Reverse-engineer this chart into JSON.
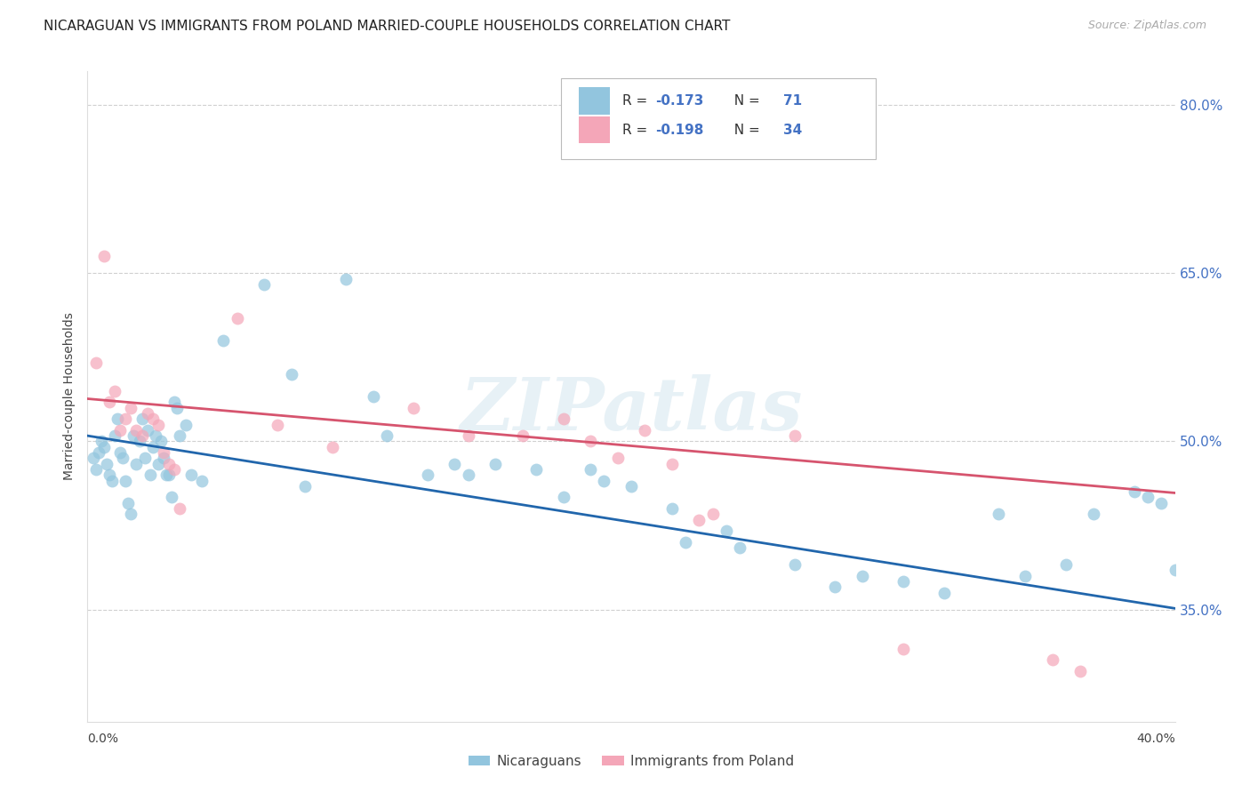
{
  "title": "NICARAGUAN VS IMMIGRANTS FROM POLAND MARRIED-COUPLE HOUSEHOLDS CORRELATION CHART",
  "source": "Source: ZipAtlas.com",
  "ylabel": "Married-couple Households",
  "blue_color": "#92c5de",
  "pink_color": "#f4a6b8",
  "blue_line_color": "#2166ac",
  "pink_line_color": "#d6546e",
  "blue_x": [
    0.2,
    0.3,
    0.4,
    0.5,
    0.6,
    0.7,
    0.8,
    0.9,
    1.0,
    1.1,
    1.2,
    1.3,
    1.4,
    1.5,
    1.6,
    1.7,
    1.8,
    1.9,
    2.0,
    2.1,
    2.2,
    2.3,
    2.4,
    2.5,
    2.6,
    2.7,
    2.8,
    2.9,
    3.0,
    3.1,
    3.2,
    3.3,
    3.4,
    3.6,
    3.8,
    4.2,
    5.0,
    6.5,
    7.5,
    8.0,
    9.5,
    10.5,
    11.0,
    12.5,
    13.5,
    14.0,
    15.0,
    16.5,
    17.5,
    18.5,
    19.0,
    20.0,
    21.5,
    22.0,
    23.5,
    24.0,
    26.0,
    27.5,
    28.5,
    30.0,
    31.5,
    33.5,
    34.5,
    36.0,
    37.0,
    38.5,
    39.0,
    39.5,
    40.0,
    40.5,
    41.0
  ],
  "blue_y": [
    48.5,
    47.5,
    49.0,
    50.0,
    49.5,
    48.0,
    47.0,
    46.5,
    50.5,
    52.0,
    49.0,
    48.5,
    46.5,
    44.5,
    43.5,
    50.5,
    48.0,
    50.0,
    52.0,
    48.5,
    51.0,
    47.0,
    49.5,
    50.5,
    48.0,
    50.0,
    48.5,
    47.0,
    47.0,
    45.0,
    53.5,
    53.0,
    50.5,
    51.5,
    47.0,
    46.5,
    59.0,
    64.0,
    56.0,
    46.0,
    64.5,
    54.0,
    50.5,
    47.0,
    48.0,
    47.0,
    48.0,
    47.5,
    45.0,
    47.5,
    46.5,
    46.0,
    44.0,
    41.0,
    42.0,
    40.5,
    39.0,
    37.0,
    38.0,
    37.5,
    36.5,
    43.5,
    38.0,
    39.0,
    43.5,
    45.5,
    45.0,
    44.5,
    38.5,
    38.5,
    37.5
  ],
  "pink_x": [
    0.3,
    0.6,
    0.8,
    1.0,
    1.2,
    1.4,
    1.6,
    1.8,
    2.0,
    2.2,
    2.4,
    2.6,
    2.8,
    3.0,
    3.2,
    3.4,
    5.5,
    7.0,
    9.0,
    12.0,
    14.0,
    16.0,
    17.5,
    18.5,
    19.5,
    20.5,
    21.5,
    22.5,
    23.0,
    26.0,
    30.0,
    35.5,
    36.5
  ],
  "pink_y": [
    57.0,
    66.5,
    53.5,
    54.5,
    51.0,
    52.0,
    53.0,
    51.0,
    50.5,
    52.5,
    52.0,
    51.5,
    49.0,
    48.0,
    47.5,
    44.0,
    61.0,
    51.5,
    49.5,
    53.0,
    50.5,
    50.5,
    52.0,
    50.0,
    48.5,
    51.0,
    48.0,
    43.0,
    43.5,
    50.5,
    31.5,
    30.5,
    29.5
  ],
  "xmin": 0.0,
  "xmax": 40.0,
  "ymin": 25.0,
  "ymax": 83.0,
  "blue_intercept": 50.5,
  "blue_slope": -0.385,
  "pink_intercept": 53.8,
  "pink_slope": -0.21,
  "ytick_vals": [
    35.0,
    50.0,
    65.0,
    80.0
  ],
  "ytick_labels": [
    "35.0%",
    "50.0%",
    "65.0%",
    "80.0%"
  ],
  "watermark": "ZIPatlas",
  "background_color": "#ffffff",
  "grid_color": "#d0d0d0",
  "title_fontsize": 11,
  "tick_label_color": "#4472c4"
}
